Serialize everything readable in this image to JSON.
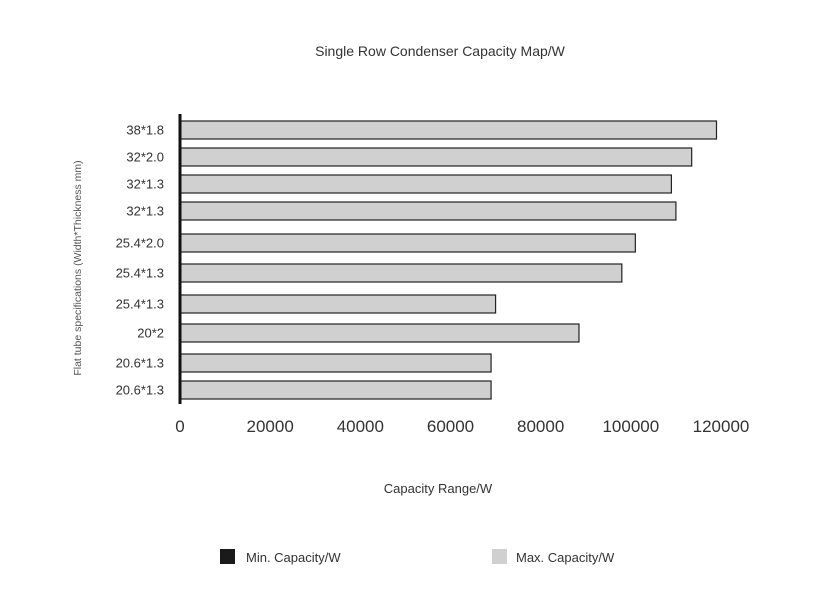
{
  "chart_data": {
    "type": "bar",
    "orientation": "horizontal",
    "title": "Single Row Condenser Capacity Map/W",
    "xlabel": "Capacity Range/W",
    "ylabel": "Flat tube specifications (Width*Thickness mm)",
    "categories": [
      "38*1.8",
      "32*2.0",
      "32*1.3",
      "32*1.3",
      "25.4*2.0",
      "25.4*1.3",
      "25.4*1.3",
      "20*2",
      "20.6*1.3",
      "20.6*1.3"
    ],
    "series": [
      {
        "name": "Min. Capacity/W",
        "color": "#1a1a1a",
        "values": [
          0,
          0,
          0,
          0,
          0,
          0,
          0,
          0,
          0,
          0
        ]
      },
      {
        "name": "Max. Capacity/W",
        "color": "#d0d0d0",
        "values": [
          119000,
          113500,
          109000,
          110000,
          101000,
          98000,
          70000,
          88500,
          69000,
          69000
        ]
      }
    ],
    "xlim": [
      0,
      120000
    ],
    "xticks": [
      "0",
      "20000",
      "40000",
      "60000",
      "80000",
      "100000",
      "120000"
    ],
    "grid": false,
    "legend_position": "bottom"
  }
}
